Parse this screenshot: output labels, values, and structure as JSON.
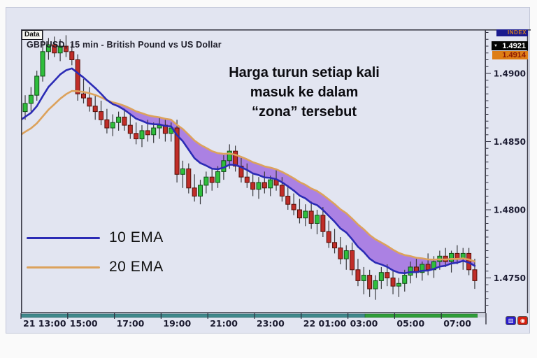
{
  "window": {
    "data_tab": "Data",
    "symbol_title": "GBPUSD, 15 min - British Pound vs US Dollar"
  },
  "badges": {
    "index_label": "INDEX",
    "price_primary": "1.4921",
    "price_secondary": "1.4914",
    "pointer_icon": "▼"
  },
  "annotation": {
    "lines": [
      "Harga turun setiap kali",
      "masuk ke dalam",
      "“zona” tersebut"
    ]
  },
  "legend": [
    {
      "label": "10 EMA",
      "color": "#2b2bb5"
    },
    {
      "label": "20 EMA",
      "color": "#dca25c"
    }
  ],
  "corner_buttons": [
    {
      "name": "grid-blue-button",
      "glyph": "▥"
    },
    {
      "name": "record-red-button",
      "glyph": "◉"
    }
  ],
  "x_axis": {
    "labels": [
      "21 13:00",
      "15:00",
      "17:00",
      "19:00",
      "21:00",
      "23:00",
      "22 01:00",
      "03:00",
      "05:00",
      "07:00"
    ]
  },
  "y_axis": {
    "major_labels": [
      "1.4900",
      "1.4850",
      "1.4800",
      "1.4750"
    ],
    "major_values": [
      1.49,
      1.485,
      1.48,
      1.475
    ],
    "minor_step": 0.0005
  },
  "chart_data": {
    "type": "candlestick",
    "symbol": "GBPUSD",
    "interval": "15 min",
    "title": "GBPUSD, 15 min - British Pound vs US Dollar",
    "y_range": [
      1.4727,
      1.4933
    ],
    "x_start": "21 13:15",
    "x_end": "22 08:30",
    "grid": false,
    "zone_fill": "#a678e2",
    "colors": {
      "up": "#2fbe3c",
      "up_border": "#114d16",
      "down": "#c02d28",
      "down_border": "#541008",
      "wick": "#3a3a3e",
      "background": "#e2e5f1",
      "border": "#3d3d49"
    },
    "overlays": [
      {
        "name": "10 EMA",
        "type": "ema",
        "period": 10,
        "seed": 1.4866,
        "color": "#2b2bb5"
      },
      {
        "name": "20 EMA",
        "type": "ema",
        "period": 20,
        "seed": 1.4855,
        "color": "#dca25c"
      }
    ],
    "candles": [
      [
        "13:15",
        1.4872,
        1.4884,
        1.4866,
        1.4878
      ],
      [
        "13:30",
        1.4878,
        1.489,
        1.4872,
        1.4884
      ],
      [
        "13:45",
        1.4884,
        1.4902,
        1.488,
        1.4898
      ],
      [
        "14:00",
        1.4898,
        1.4932,
        1.4894,
        1.4916
      ],
      [
        "14:15",
        1.4916,
        1.4926,
        1.491,
        1.4921
      ],
      [
        "14:30",
        1.4921,
        1.4927,
        1.4912,
        1.4915
      ],
      [
        "14:45",
        1.4915,
        1.4925,
        1.4909,
        1.492
      ],
      [
        "15:00",
        1.492,
        1.4928,
        1.4912,
        1.4916
      ],
      [
        "15:15",
        1.4916,
        1.4922,
        1.4906,
        1.491
      ],
      [
        "15:30",
        1.491,
        1.4914,
        1.488,
        1.4885
      ],
      [
        "15:45",
        1.4885,
        1.4896,
        1.4878,
        1.4882
      ],
      [
        "16:00",
        1.4882,
        1.489,
        1.4872,
        1.4876
      ],
      [
        "16:15",
        1.4876,
        1.4884,
        1.4866,
        1.4872
      ],
      [
        "16:30",
        1.4872,
        1.488,
        1.4862,
        1.4866
      ],
      [
        "16:45",
        1.4866,
        1.4874,
        1.4856,
        1.486
      ],
      [
        "17:00",
        1.486,
        1.487,
        1.4854,
        1.4864
      ],
      [
        "17:15",
        1.4864,
        1.4872,
        1.4858,
        1.4868
      ],
      [
        "17:30",
        1.4868,
        1.4874,
        1.4858,
        1.4862
      ],
      [
        "17:45",
        1.4862,
        1.487,
        1.4852,
        1.4856
      ],
      [
        "18:00",
        1.4856,
        1.4864,
        1.4848,
        1.4852
      ],
      [
        "18:15",
        1.4852,
        1.4862,
        1.4846,
        1.4858
      ],
      [
        "18:30",
        1.4858,
        1.4866,
        1.485,
        1.4855
      ],
      [
        "18:45",
        1.4855,
        1.4864,
        1.4849,
        1.486
      ],
      [
        "19:00",
        1.486,
        1.4868,
        1.4852,
        1.4862
      ],
      [
        "19:15",
        1.4862,
        1.4866,
        1.485,
        1.4856
      ],
      [
        "19:30",
        1.4856,
        1.4864,
        1.485,
        1.486
      ],
      [
        "19:45",
        1.486,
        1.4866,
        1.482,
        1.4826
      ],
      [
        "20:00",
        1.4826,
        1.4836,
        1.4816,
        1.483
      ],
      [
        "20:15",
        1.483,
        1.4834,
        1.4812,
        1.4816
      ],
      [
        "20:30",
        1.4816,
        1.4826,
        1.4806,
        1.481
      ],
      [
        "20:45",
        1.481,
        1.4822,
        1.4804,
        1.4818
      ],
      [
        "21:00",
        1.4818,
        1.4828,
        1.4812,
        1.4824
      ],
      [
        "21:15",
        1.4824,
        1.483,
        1.4814,
        1.482
      ],
      [
        "21:30",
        1.482,
        1.4832,
        1.4816,
        1.4828
      ],
      [
        "21:45",
        1.4828,
        1.484,
        1.4822,
        1.4836
      ],
      [
        "22:00",
        1.4836,
        1.4848,
        1.483,
        1.4843
      ],
      [
        "22:15",
        1.4843,
        1.4847,
        1.4828,
        1.4832
      ],
      [
        "22:30",
        1.4832,
        1.4838,
        1.482,
        1.4824
      ],
      [
        "22:45",
        1.4824,
        1.4834,
        1.4816,
        1.482
      ],
      [
        "23:00",
        1.482,
        1.4826,
        1.481,
        1.4815
      ],
      [
        "23:15",
        1.4815,
        1.4824,
        1.4808,
        1.482
      ],
      [
        "23:30",
        1.482,
        1.4828,
        1.4812,
        1.4816
      ],
      [
        "23:45",
        1.4816,
        1.4825,
        1.481,
        1.4822
      ],
      [
        "00:00",
        1.4822,
        1.483,
        1.4814,
        1.4818
      ],
      [
        "00:15",
        1.4818,
        1.4824,
        1.4806,
        1.481
      ],
      [
        "00:30",
        1.481,
        1.4818,
        1.48,
        1.4804
      ],
      [
        "00:45",
        1.4804,
        1.4812,
        1.4796,
        1.48
      ],
      [
        "01:00",
        1.48,
        1.4808,
        1.479,
        1.4794
      ],
      [
        "01:15",
        1.4794,
        1.4804,
        1.4788,
        1.4799
      ],
      [
        "01:30",
        1.4799,
        1.4806,
        1.4786,
        1.479
      ],
      [
        "01:45",
        1.479,
        1.48,
        1.4782,
        1.4796
      ],
      [
        "02:00",
        1.4796,
        1.4802,
        1.478,
        1.4784
      ],
      [
        "02:15",
        1.4784,
        1.4792,
        1.4772,
        1.4776
      ],
      [
        "02:30",
        1.4776,
        1.4786,
        1.4768,
        1.4772
      ],
      [
        "02:45",
        1.4772,
        1.478,
        1.476,
        1.4764
      ],
      [
        "03:00",
        1.4764,
        1.4774,
        1.4756,
        1.477
      ],
      [
        "03:15",
        1.477,
        1.4776,
        1.4752,
        1.4756
      ],
      [
        "03:30",
        1.4756,
        1.4764,
        1.4744,
        1.4748
      ],
      [
        "03:45",
        1.4748,
        1.4758,
        1.4738,
        1.4752
      ],
      [
        "04:00",
        1.4752,
        1.4756,
        1.4736,
        1.4742
      ],
      [
        "04:15",
        1.4742,
        1.4752,
        1.4734,
        1.4748
      ],
      [
        "04:30",
        1.4748,
        1.4758,
        1.4742,
        1.4754
      ],
      [
        "04:45",
        1.4754,
        1.476,
        1.4744,
        1.475
      ],
      [
        "05:00",
        1.475,
        1.4756,
        1.4738,
        1.4744
      ],
      [
        "05:15",
        1.4744,
        1.475,
        1.4736,
        1.4746
      ],
      [
        "05:30",
        1.4746,
        1.4756,
        1.474,
        1.4752
      ],
      [
        "05:45",
        1.4752,
        1.4762,
        1.4746,
        1.4758
      ],
      [
        "06:00",
        1.4758,
        1.4764,
        1.475,
        1.4754
      ],
      [
        "06:15",
        1.4754,
        1.4762,
        1.4748,
        1.476
      ],
      [
        "06:30",
        1.476,
        1.4768,
        1.4752,
        1.4756
      ],
      [
        "06:45",
        1.4756,
        1.4766,
        1.475,
        1.4762
      ],
      [
        "07:00",
        1.4762,
        1.477,
        1.4756,
        1.4766
      ],
      [
        "07:15",
        1.4766,
        1.4772,
        1.4758,
        1.4762
      ],
      [
        "07:30",
        1.4762,
        1.477,
        1.4754,
        1.4768
      ],
      [
        "07:45",
        1.4768,
        1.4774,
        1.476,
        1.4764
      ],
      [
        "08:00",
        1.4764,
        1.4772,
        1.4756,
        1.4768
      ],
      [
        "08:15",
        1.4768,
        1.4772,
        1.4752,
        1.4756
      ],
      [
        "08:30",
        1.4756,
        1.4764,
        1.4742,
        1.4748
      ]
    ]
  }
}
